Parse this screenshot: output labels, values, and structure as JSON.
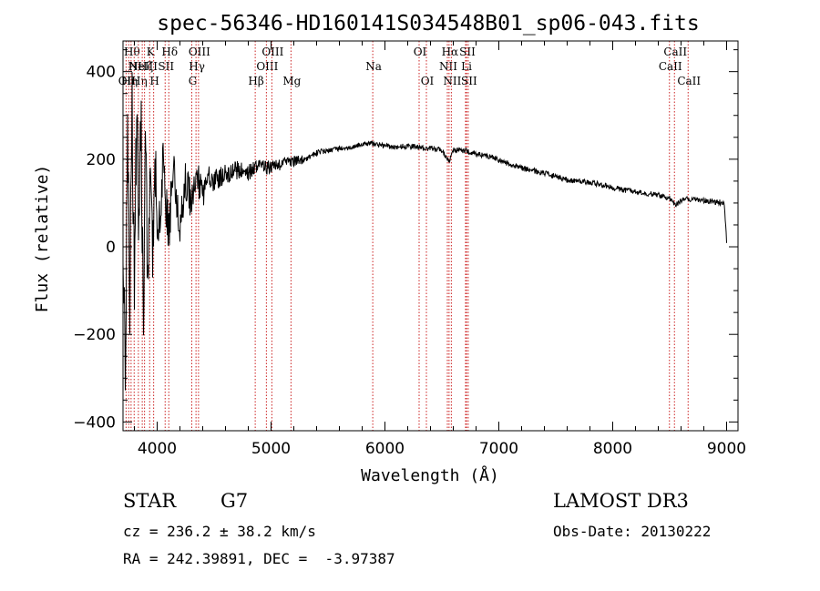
{
  "chart_data": {
    "type": "line",
    "title": "spec-56346-HD160141S034548B01_sp06-043.fits",
    "xlabel": "Wavelength (Å)",
    "ylabel": "Flux (relative)",
    "xlim": [
      3700,
      9100
    ],
    "ylim": [
      -420,
      470
    ],
    "xticks": [
      4000,
      5000,
      6000,
      7000,
      8000,
      9000
    ],
    "yticks": [
      -400,
      -200,
      0,
      200,
      400
    ],
    "ytick_labels": [
      "−400",
      "−200",
      "0",
      "200",
      "400"
    ],
    "series": [
      {
        "name": "flux",
        "x": [
          3700,
          3720,
          3740,
          3760,
          3780,
          3800,
          3820,
          3840,
          3860,
          3880,
          3900,
          3920,
          3940,
          3960,
          3980,
          4000,
          4050,
          4100,
          4150,
          4200,
          4250,
          4300,
          4350,
          4400,
          4450,
          4500,
          4600,
          4700,
          4800,
          4900,
          5000,
          5100,
          5200,
          5300,
          5400,
          5500,
          5600,
          5700,
          5800,
          5900,
          6000,
          6100,
          6200,
          6300,
          6400,
          6500,
          6563,
          6600,
          6700,
          6800,
          6900,
          7000,
          7200,
          7400,
          7600,
          7800,
          8000,
          8200,
          8400,
          8500,
          8542,
          8600,
          8662,
          8700,
          8800,
          8900,
          8980,
          9000
        ],
        "y": [
          80,
          -320,
          260,
          -150,
          300,
          -100,
          320,
          40,
          280,
          -200,
          250,
          -120,
          220,
          -80,
          200,
          -10,
          180,
          40,
          170,
          60,
          150,
          100,
          160,
          120,
          155,
          150,
          165,
          175,
          170,
          185,
          180,
          190,
          195,
          200,
          215,
          220,
          225,
          225,
          235,
          235,
          230,
          228,
          230,
          226,
          225,
          220,
          195,
          222,
          220,
          212,
          208,
          198,
          180,
          168,
          152,
          148,
          135,
          125,
          118,
          112,
          95,
          105,
          110,
          108,
          106,
          103,
          100,
          10
        ]
      }
    ],
    "spectral_lines": [
      {
        "wavelength": 3727,
        "label": "OII",
        "row": 3
      },
      {
        "wavelength": 3750,
        "label": "Hη",
        "row": 3
      },
      {
        "wavelength": 3771,
        "label": "Hθ",
        "row": 1
      },
      {
        "wavelength": 3798,
        "label": "Hι",
        "row": 2
      },
      {
        "wavelength": 3835,
        "label": "Hη",
        "row": 3
      },
      {
        "wavelength": 3869,
        "label": "NeIII",
        "row": 2
      },
      {
        "wavelength": 3889,
        "label": "Hζ",
        "row": 2
      },
      {
        "wavelength": 3934,
        "label": "K",
        "row": 1
      },
      {
        "wavelength": 3969,
        "label": "H",
        "row": 3
      },
      {
        "wavelength": 4070,
        "label": "SII",
        "row": 2
      },
      {
        "wavelength": 4102,
        "label": "Hδ",
        "row": 1
      },
      {
        "wavelength": 4304,
        "label": "G",
        "row": 3
      },
      {
        "wavelength": 4341,
        "label": "Hγ",
        "row": 2
      },
      {
        "wavelength": 4363,
        "label": "OIII",
        "row": 1
      },
      {
        "wavelength": 4861,
        "label": "Hβ",
        "row": 3
      },
      {
        "wavelength": 4959,
        "label": "OIII",
        "row": 2
      },
      {
        "wavelength": 5007,
        "label": "OIII",
        "row": 1
      },
      {
        "wavelength": 5175,
        "label": "Mg",
        "row": 3
      },
      {
        "wavelength": 5893,
        "label": "Na",
        "row": 2
      },
      {
        "wavelength": 6300,
        "label": "OI",
        "row": 1
      },
      {
        "wavelength": 6364,
        "label": "OI",
        "row": 3
      },
      {
        "wavelength": 6548,
        "label": "NII",
        "row": 2
      },
      {
        "wavelength": 6563,
        "label": "Hα",
        "row": 1
      },
      {
        "wavelength": 6583,
        "label": "NII",
        "row": 3
      },
      {
        "wavelength": 6708,
        "label": "Li",
        "row": 2
      },
      {
        "wavelength": 6716,
        "label": "SII",
        "row": 1
      },
      {
        "wavelength": 6731,
        "label": "SII",
        "row": 3
      },
      {
        "wavelength": 8498,
        "label": "CaII",
        "row": 2
      },
      {
        "wavelength": 8542,
        "label": "CaII",
        "row": 1
      },
      {
        "wavelength": 8662,
        "label": "CaII",
        "row": 3
      }
    ]
  },
  "info": {
    "object_class": "STAR",
    "subclass": "G7",
    "survey": "LAMOST DR3",
    "cz": "cz = 236.2 ± 38.2 km/s",
    "obs_date": "Obs-Date: 20130222",
    "coords": "RA = 242.39891, DEC =  -3.97387"
  },
  "colors": {
    "line_marker": "#cc2222",
    "spectrum": "#000000"
  }
}
